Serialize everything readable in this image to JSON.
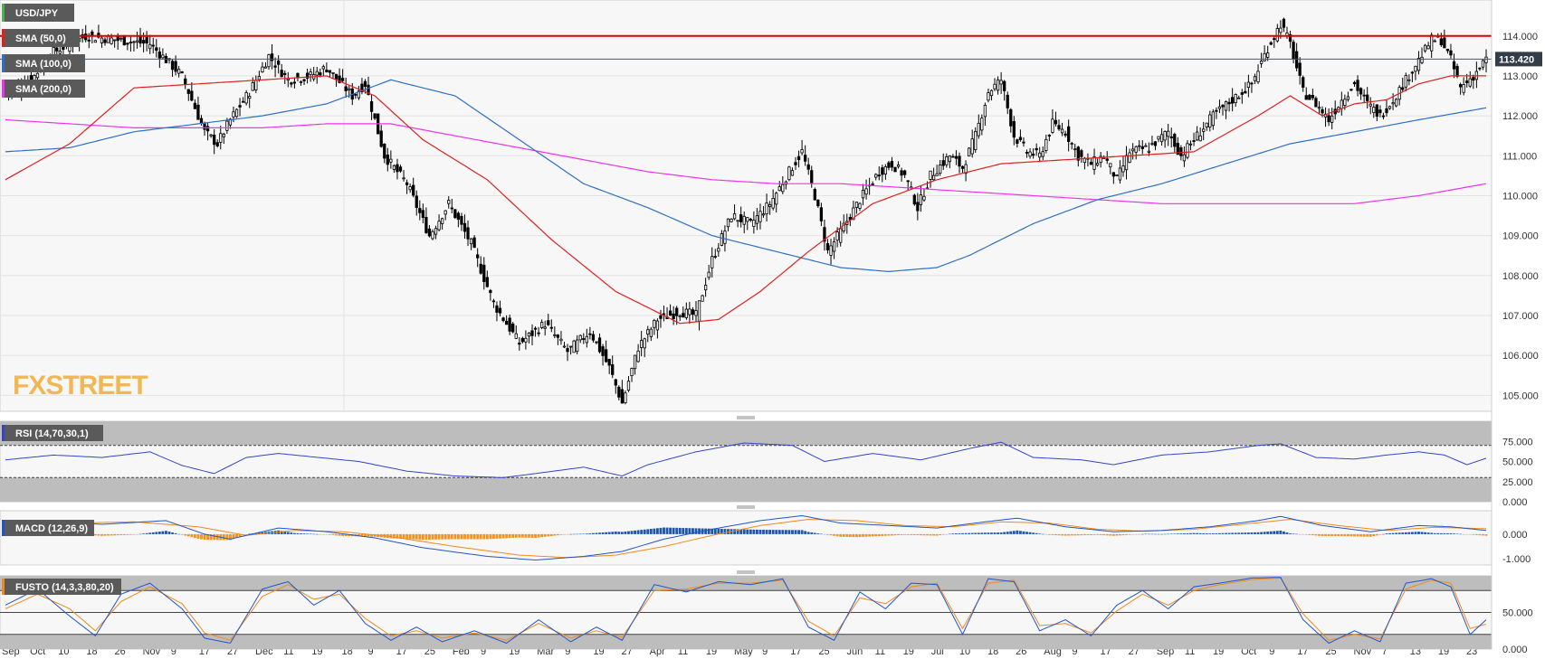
{
  "colors": {
    "background": "#f7f7f7",
    "candle": "#000000",
    "sma50": "#e01f1f",
    "sma100": "#2f6fc6",
    "sma200": "#ee33ee",
    "resistance": "#e00000",
    "price_line": "#2d5f8a",
    "price_tag": "#333d4a",
    "rsi": "#3344cc",
    "macd_line": "#2255cc",
    "signal_line": "#f08a1c",
    "hist_pos": "#1e56a8",
    "hist_neg": "#f5921e",
    "fusto_k": "#2255cc",
    "fusto_d": "#f08a1c",
    "band_fill": "#bdbdbd",
    "watermark": "#f0a830"
  },
  "watermark": {
    "text": "FXSTREET"
  },
  "main_panel": {
    "legend": [
      "USD/JPY",
      "SMA (50,0)",
      "SMA (100,0)",
      "SMA (200,0)"
    ],
    "legend_colors": [
      "#4caf50",
      "#e01f1f",
      "#2f6fc6",
      "#ee33ee"
    ],
    "price_tag": "113.420"
  },
  "rsi_panel": {
    "label": "RSI (14,70,30,1)",
    "ticks": [
      "75.000",
      "50.000",
      "25.000",
      "0.000"
    ]
  },
  "macd_panel": {
    "label": "MACD (12,26,9)",
    "ticks": [
      "0.000",
      "-1.000"
    ]
  },
  "fusto_panel": {
    "label": "FUSTO (14,3,3,80,20)",
    "ticks": [
      "50.000",
      "0.000"
    ]
  },
  "x_labels": [
    "Sep",
    "Oct",
    "10",
    "18",
    "26",
    "Nov",
    "9",
    "17",
    "27",
    "Dec",
    "11",
    "19",
    "'18",
    "9",
    "17",
    "25",
    "Feb",
    "9",
    "19",
    "Mar",
    "9",
    "19",
    "27",
    "Apr",
    "11",
    "19",
    "May",
    "9",
    "17",
    "25",
    "Jun",
    "11",
    "19",
    "Jul",
    "10",
    "18",
    "26",
    "Aug",
    "9",
    "17",
    "27",
    "Sep",
    "11",
    "19",
    "Oct",
    "9",
    "17",
    "25",
    "Nov",
    "7",
    "13",
    "19",
    "23"
  ],
  "chart_data": {
    "type": "line",
    "title": "USD/JPY",
    "ylim": [
      104.6,
      114.9
    ],
    "y_ticks": [
      105,
      106,
      107,
      108,
      109,
      110,
      111,
      112,
      113,
      114
    ],
    "price_anchors": [
      [
        0,
        112.6
      ],
      [
        8,
        112.9
      ],
      [
        15,
        113.6
      ],
      [
        25,
        114.0
      ],
      [
        35,
        113.9
      ],
      [
        45,
        113.8
      ],
      [
        55,
        113.0
      ],
      [
        62,
        111.6
      ],
      [
        66,
        111.3
      ],
      [
        70,
        111.9
      ],
      [
        76,
        112.6
      ],
      [
        82,
        113.5
      ],
      [
        88,
        112.9
      ],
      [
        95,
        113.0
      ],
      [
        100,
        113.2
      ],
      [
        108,
        112.5
      ],
      [
        112,
        112.8
      ],
      [
        118,
        111.0
      ],
      [
        125,
        110.3
      ],
      [
        132,
        109.0
      ],
      [
        138,
        109.8
      ],
      [
        145,
        108.8
      ],
      [
        152,
        107.3
      ],
      [
        160,
        106.3
      ],
      [
        168,
        106.8
      ],
      [
        175,
        106.1
      ],
      [
        182,
        106.6
      ],
      [
        188,
        105.7
      ],
      [
        192,
        104.8
      ],
      [
        197,
        106.2
      ],
      [
        203,
        106.9
      ],
      [
        210,
        107.1
      ],
      [
        215,
        107.0
      ],
      [
        220,
        108.4
      ],
      [
        226,
        109.5
      ],
      [
        232,
        109.3
      ],
      [
        238,
        109.8
      ],
      [
        244,
        110.6
      ],
      [
        248,
        111.1
      ],
      [
        252,
        110.0
      ],
      [
        256,
        108.6
      ],
      [
        260,
        109.1
      ],
      [
        266,
        109.9
      ],
      [
        272,
        110.6
      ],
      [
        276,
        110.8
      ],
      [
        280,
        110.5
      ],
      [
        284,
        109.7
      ],
      [
        288,
        110.5
      ],
      [
        294,
        111.0
      ],
      [
        298,
        110.7
      ],
      [
        302,
        111.5
      ],
      [
        306,
        112.6
      ],
      [
        310,
        112.9
      ],
      [
        314,
        111.5
      ],
      [
        318,
        111.1
      ],
      [
        322,
        111.0
      ],
      [
        326,
        111.8
      ],
      [
        330,
        111.6
      ],
      [
        334,
        111.0
      ],
      [
        338,
        110.8
      ],
      [
        342,
        111.0
      ],
      [
        346,
        110.4
      ],
      [
        350,
        111.1
      ],
      [
        356,
        111.2
      ],
      [
        362,
        111.6
      ],
      [
        366,
        111.0
      ],
      [
        370,
        111.4
      ],
      [
        376,
        112.0
      ],
      [
        382,
        112.4
      ],
      [
        388,
        112.8
      ],
      [
        393,
        113.7
      ],
      [
        397,
        114.3
      ],
      [
        400,
        113.8
      ],
      [
        404,
        112.6
      ],
      [
        408,
        112.3
      ],
      [
        412,
        111.9
      ],
      [
        416,
        112.4
      ],
      [
        420,
        112.8
      ],
      [
        424,
        112.3
      ],
      [
        428,
        112.0
      ],
      [
        432,
        112.4
      ],
      [
        436,
        112.9
      ],
      [
        440,
        113.4
      ],
      [
        444,
        113.9
      ],
      [
        447,
        113.9
      ],
      [
        450,
        113.4
      ],
      [
        453,
        112.7
      ],
      [
        457,
        113.0
      ],
      [
        461,
        113.42
      ]
    ],
    "sma50": [
      [
        0,
        110.4
      ],
      [
        20,
        111.3
      ],
      [
        40,
        112.7
      ],
      [
        60,
        112.8
      ],
      [
        80,
        112.9
      ],
      [
        100,
        113.0
      ],
      [
        115,
        112.5
      ],
      [
        130,
        111.4
      ],
      [
        150,
        110.4
      ],
      [
        170,
        108.9
      ],
      [
        190,
        107.6
      ],
      [
        210,
        106.8
      ],
      [
        222,
        106.9
      ],
      [
        235,
        107.6
      ],
      [
        250,
        108.6
      ],
      [
        270,
        109.8
      ],
      [
        290,
        110.4
      ],
      [
        310,
        110.8
      ],
      [
        330,
        110.9
      ],
      [
        350,
        111.0
      ],
      [
        370,
        111.1
      ],
      [
        390,
        112.0
      ],
      [
        400,
        112.5
      ],
      [
        410,
        112.0
      ],
      [
        420,
        112.3
      ],
      [
        430,
        112.4
      ],
      [
        440,
        112.8
      ],
      [
        450,
        113.0
      ],
      [
        461,
        113.0
      ]
    ],
    "sma100": [
      [
        0,
        111.1
      ],
      [
        20,
        111.2
      ],
      [
        40,
        111.6
      ],
      [
        60,
        111.8
      ],
      [
        80,
        112.0
      ],
      [
        100,
        112.3
      ],
      [
        120,
        112.9
      ],
      [
        140,
        112.5
      ],
      [
        160,
        111.4
      ],
      [
        180,
        110.3
      ],
      [
        200,
        109.7
      ],
      [
        220,
        109.0
      ],
      [
        240,
        108.6
      ],
      [
        260,
        108.2
      ],
      [
        275,
        108.1
      ],
      [
        290,
        108.2
      ],
      [
        300,
        108.5
      ],
      [
        320,
        109.3
      ],
      [
        340,
        109.9
      ],
      [
        360,
        110.3
      ],
      [
        380,
        110.8
      ],
      [
        400,
        111.3
      ],
      [
        420,
        111.6
      ],
      [
        440,
        111.9
      ],
      [
        461,
        112.2
      ]
    ],
    "sma200": [
      [
        0,
        111.9
      ],
      [
        20,
        111.8
      ],
      [
        40,
        111.7
      ],
      [
        60,
        111.7
      ],
      [
        80,
        111.7
      ],
      [
        100,
        111.8
      ],
      [
        120,
        111.8
      ],
      [
        140,
        111.5
      ],
      [
        160,
        111.2
      ],
      [
        180,
        110.9
      ],
      [
        200,
        110.6
      ],
      [
        220,
        110.4
      ],
      [
        240,
        110.3
      ],
      [
        260,
        110.3
      ],
      [
        280,
        110.2
      ],
      [
        300,
        110.1
      ],
      [
        320,
        110.0
      ],
      [
        340,
        109.9
      ],
      [
        360,
        109.8
      ],
      [
        380,
        109.8
      ],
      [
        400,
        109.8
      ],
      [
        420,
        109.8
      ],
      [
        440,
        110.0
      ],
      [
        461,
        110.3
      ]
    ],
    "resistance": 114.0,
    "current_price": 113.42,
    "rsi": [
      [
        0,
        52
      ],
      [
        15,
        58
      ],
      [
        30,
        55
      ],
      [
        45,
        62
      ],
      [
        55,
        45
      ],
      [
        65,
        35
      ],
      [
        75,
        55
      ],
      [
        85,
        60
      ],
      [
        95,
        56
      ],
      [
        110,
        50
      ],
      [
        125,
        38
      ],
      [
        140,
        32
      ],
      [
        155,
        30
      ],
      [
        165,
        35
      ],
      [
        180,
        43
      ],
      [
        192,
        32
      ],
      [
        200,
        46
      ],
      [
        215,
        62
      ],
      [
        230,
        73
      ],
      [
        245,
        70
      ],
      [
        255,
        50
      ],
      [
        270,
        60
      ],
      [
        285,
        52
      ],
      [
        300,
        66
      ],
      [
        310,
        74
      ],
      [
        320,
        55
      ],
      [
        335,
        52
      ],
      [
        345,
        46
      ],
      [
        360,
        58
      ],
      [
        375,
        62
      ],
      [
        390,
        70
      ],
      [
        397,
        72
      ],
      [
        408,
        55
      ],
      [
        420,
        53
      ],
      [
        430,
        58
      ],
      [
        440,
        62
      ],
      [
        448,
        58
      ],
      [
        455,
        46
      ],
      [
        461,
        54
      ]
    ],
    "macd": [
      [
        0,
        0.3
      ],
      [
        15,
        0.5
      ],
      [
        30,
        0.4
      ],
      [
        50,
        0.55
      ],
      [
        62,
        0.0
      ],
      [
        70,
        -0.2
      ],
      [
        85,
        0.25
      ],
      [
        100,
        0.1
      ],
      [
        115,
        -0.15
      ],
      [
        130,
        -0.55
      ],
      [
        150,
        -0.9
      ],
      [
        165,
        -1.05
      ],
      [
        180,
        -0.9
      ],
      [
        192,
        -0.7
      ],
      [
        205,
        -0.2
      ],
      [
        220,
        0.2
      ],
      [
        235,
        0.55
      ],
      [
        248,
        0.75
      ],
      [
        260,
        0.45
      ],
      [
        275,
        0.35
      ],
      [
        290,
        0.25
      ],
      [
        305,
        0.5
      ],
      [
        315,
        0.65
      ],
      [
        330,
        0.3
      ],
      [
        345,
        0.1
      ],
      [
        360,
        0.15
      ],
      [
        375,
        0.3
      ],
      [
        390,
        0.55
      ],
      [
        397,
        0.72
      ],
      [
        410,
        0.35
      ],
      [
        425,
        0.1
      ],
      [
        440,
        0.35
      ],
      [
        450,
        0.3
      ],
      [
        461,
        0.15
      ]
    ],
    "signal": [
      [
        0,
        0.2
      ],
      [
        20,
        0.45
      ],
      [
        40,
        0.5
      ],
      [
        60,
        0.3
      ],
      [
        75,
        -0.05
      ],
      [
        90,
        0.15
      ],
      [
        105,
        0.1
      ],
      [
        120,
        -0.1
      ],
      [
        140,
        -0.5
      ],
      [
        160,
        -0.85
      ],
      [
        175,
        -0.95
      ],
      [
        190,
        -0.85
      ],
      [
        205,
        -0.5
      ],
      [
        220,
        -0.05
      ],
      [
        235,
        0.35
      ],
      [
        250,
        0.6
      ],
      [
        265,
        0.55
      ],
      [
        280,
        0.35
      ],
      [
        295,
        0.3
      ],
      [
        310,
        0.5
      ],
      [
        325,
        0.45
      ],
      [
        340,
        0.2
      ],
      [
        355,
        0.12
      ],
      [
        370,
        0.2
      ],
      [
        385,
        0.4
      ],
      [
        400,
        0.6
      ],
      [
        415,
        0.35
      ],
      [
        430,
        0.15
      ],
      [
        445,
        0.28
      ],
      [
        461,
        0.22
      ]
    ],
    "fusto_k": [
      [
        0,
        60
      ],
      [
        10,
        82
      ],
      [
        20,
        45
      ],
      [
        28,
        18
      ],
      [
        36,
        75
      ],
      [
        45,
        90
      ],
      [
        55,
        55
      ],
      [
        62,
        15
      ],
      [
        70,
        8
      ],
      [
        80,
        82
      ],
      [
        88,
        92
      ],
      [
        96,
        60
      ],
      [
        104,
        80
      ],
      [
        112,
        35
      ],
      [
        120,
        12
      ],
      [
        128,
        30
      ],
      [
        136,
        10
      ],
      [
        146,
        25
      ],
      [
        156,
        8
      ],
      [
        166,
        40
      ],
      [
        176,
        10
      ],
      [
        184,
        30
      ],
      [
        192,
        12
      ],
      [
        202,
        88
      ],
      [
        212,
        78
      ],
      [
        222,
        92
      ],
      [
        232,
        88
      ],
      [
        242,
        96
      ],
      [
        250,
        30
      ],
      [
        258,
        12
      ],
      [
        266,
        78
      ],
      [
        274,
        55
      ],
      [
        282,
        90
      ],
      [
        290,
        88
      ],
      [
        298,
        20
      ],
      [
        306,
        96
      ],
      [
        314,
        92
      ],
      [
        322,
        25
      ],
      [
        330,
        40
      ],
      [
        338,
        18
      ],
      [
        346,
        60
      ],
      [
        354,
        80
      ],
      [
        362,
        55
      ],
      [
        370,
        85
      ],
      [
        378,
        90
      ],
      [
        388,
        97
      ],
      [
        397,
        98
      ],
      [
        404,
        40
      ],
      [
        412,
        8
      ],
      [
        420,
        25
      ],
      [
        428,
        10
      ],
      [
        436,
        90
      ],
      [
        444,
        96
      ],
      [
        450,
        85
      ],
      [
        456,
        20
      ],
      [
        461,
        40
      ]
    ],
    "fusto_d": [
      [
        0,
        55
      ],
      [
        10,
        75
      ],
      [
        20,
        55
      ],
      [
        28,
        25
      ],
      [
        36,
        65
      ],
      [
        45,
        85
      ],
      [
        55,
        62
      ],
      [
        62,
        22
      ],
      [
        70,
        12
      ],
      [
        80,
        72
      ],
      [
        88,
        88
      ],
      [
        96,
        68
      ],
      [
        104,
        75
      ],
      [
        112,
        42
      ],
      [
        120,
        18
      ],
      [
        128,
        25
      ],
      [
        136,
        15
      ],
      [
        146,
        22
      ],
      [
        156,
        12
      ],
      [
        166,
        35
      ],
      [
        176,
        15
      ],
      [
        184,
        25
      ],
      [
        192,
        16
      ],
      [
        202,
        80
      ],
      [
        212,
        82
      ],
      [
        222,
        90
      ],
      [
        232,
        90
      ],
      [
        242,
        94
      ],
      [
        250,
        38
      ],
      [
        258,
        18
      ],
      [
        266,
        70
      ],
      [
        274,
        62
      ],
      [
        282,
        85
      ],
      [
        290,
        90
      ],
      [
        298,
        28
      ],
      [
        306,
        90
      ],
      [
        314,
        94
      ],
      [
        322,
        32
      ],
      [
        330,
        35
      ],
      [
        338,
        22
      ],
      [
        346,
        52
      ],
      [
        354,
        75
      ],
      [
        362,
        60
      ],
      [
        370,
        80
      ],
      [
        378,
        88
      ],
      [
        388,
        95
      ],
      [
        397,
        97
      ],
      [
        404,
        48
      ],
      [
        412,
        12
      ],
      [
        420,
        20
      ],
      [
        428,
        14
      ],
      [
        436,
        82
      ],
      [
        444,
        94
      ],
      [
        450,
        90
      ],
      [
        456,
        28
      ],
      [
        461,
        34
      ]
    ]
  }
}
